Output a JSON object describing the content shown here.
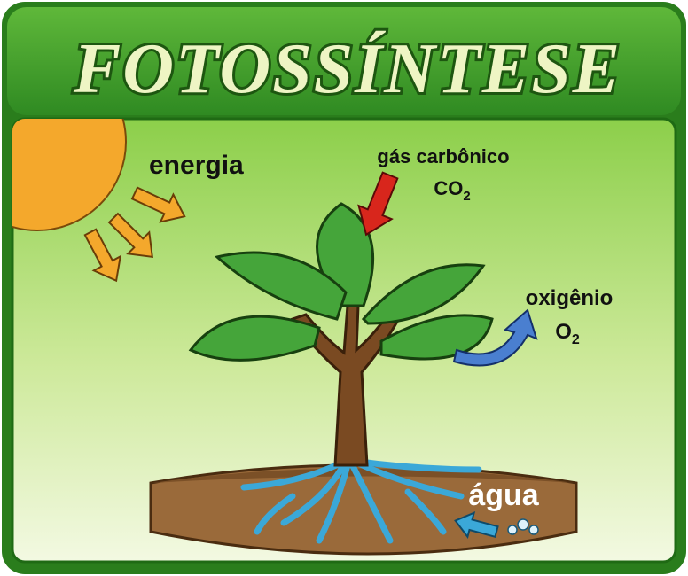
{
  "header": {
    "title": "FOTOSSÍNTESE"
  },
  "labels": {
    "energy": "energia",
    "carbon_dioxide": {
      "name": "gás carbônico",
      "formula": "CO",
      "subscript": "2"
    },
    "oxygen": {
      "name": "oxigênio",
      "formula": "O",
      "subscript": "2"
    },
    "water": "água"
  }
}
